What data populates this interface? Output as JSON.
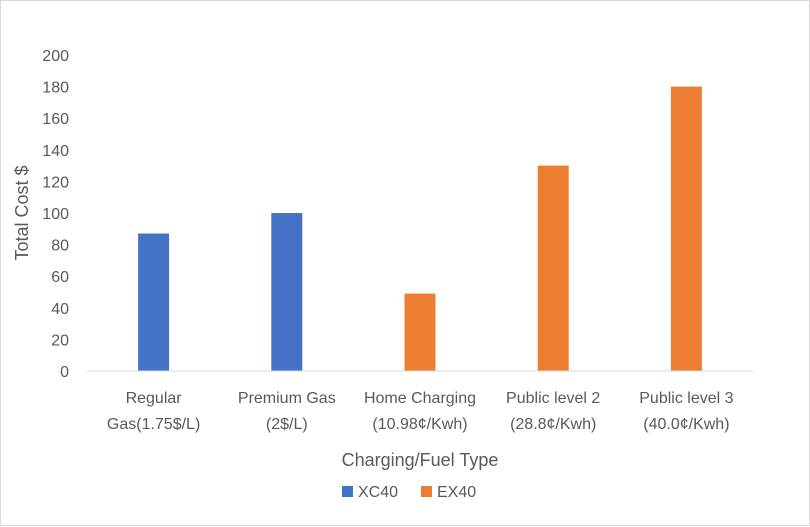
{
  "chart_data": {
    "type": "bar",
    "title": "",
    "xlabel": "Charging/Fuel Type",
    "ylabel": "Total Cost $",
    "ylim": [
      0,
      200
    ],
    "yticks": [
      0,
      20,
      40,
      60,
      80,
      100,
      120,
      140,
      160,
      180,
      200
    ],
    "grid": false,
    "legend_position": "bottom",
    "categories": [
      [
        "Regular",
        "Gas(1.75$/L)"
      ],
      [
        "Premium Gas",
        "(2$/L)"
      ],
      [
        "Home Charging",
        "(10.98¢/Kwh)"
      ],
      [
        "Public level 2",
        "(28.8¢/Kwh)"
      ],
      [
        "Public level 3",
        "(40.0¢/Kwh)"
      ]
    ],
    "series": [
      {
        "name": "XC40",
        "color": "#4472c4",
        "values": [
          87,
          100,
          null,
          null,
          null
        ]
      },
      {
        "name": "EX40",
        "color": "#ed7d31",
        "values": [
          null,
          null,
          49,
          130,
          180
        ]
      }
    ]
  }
}
